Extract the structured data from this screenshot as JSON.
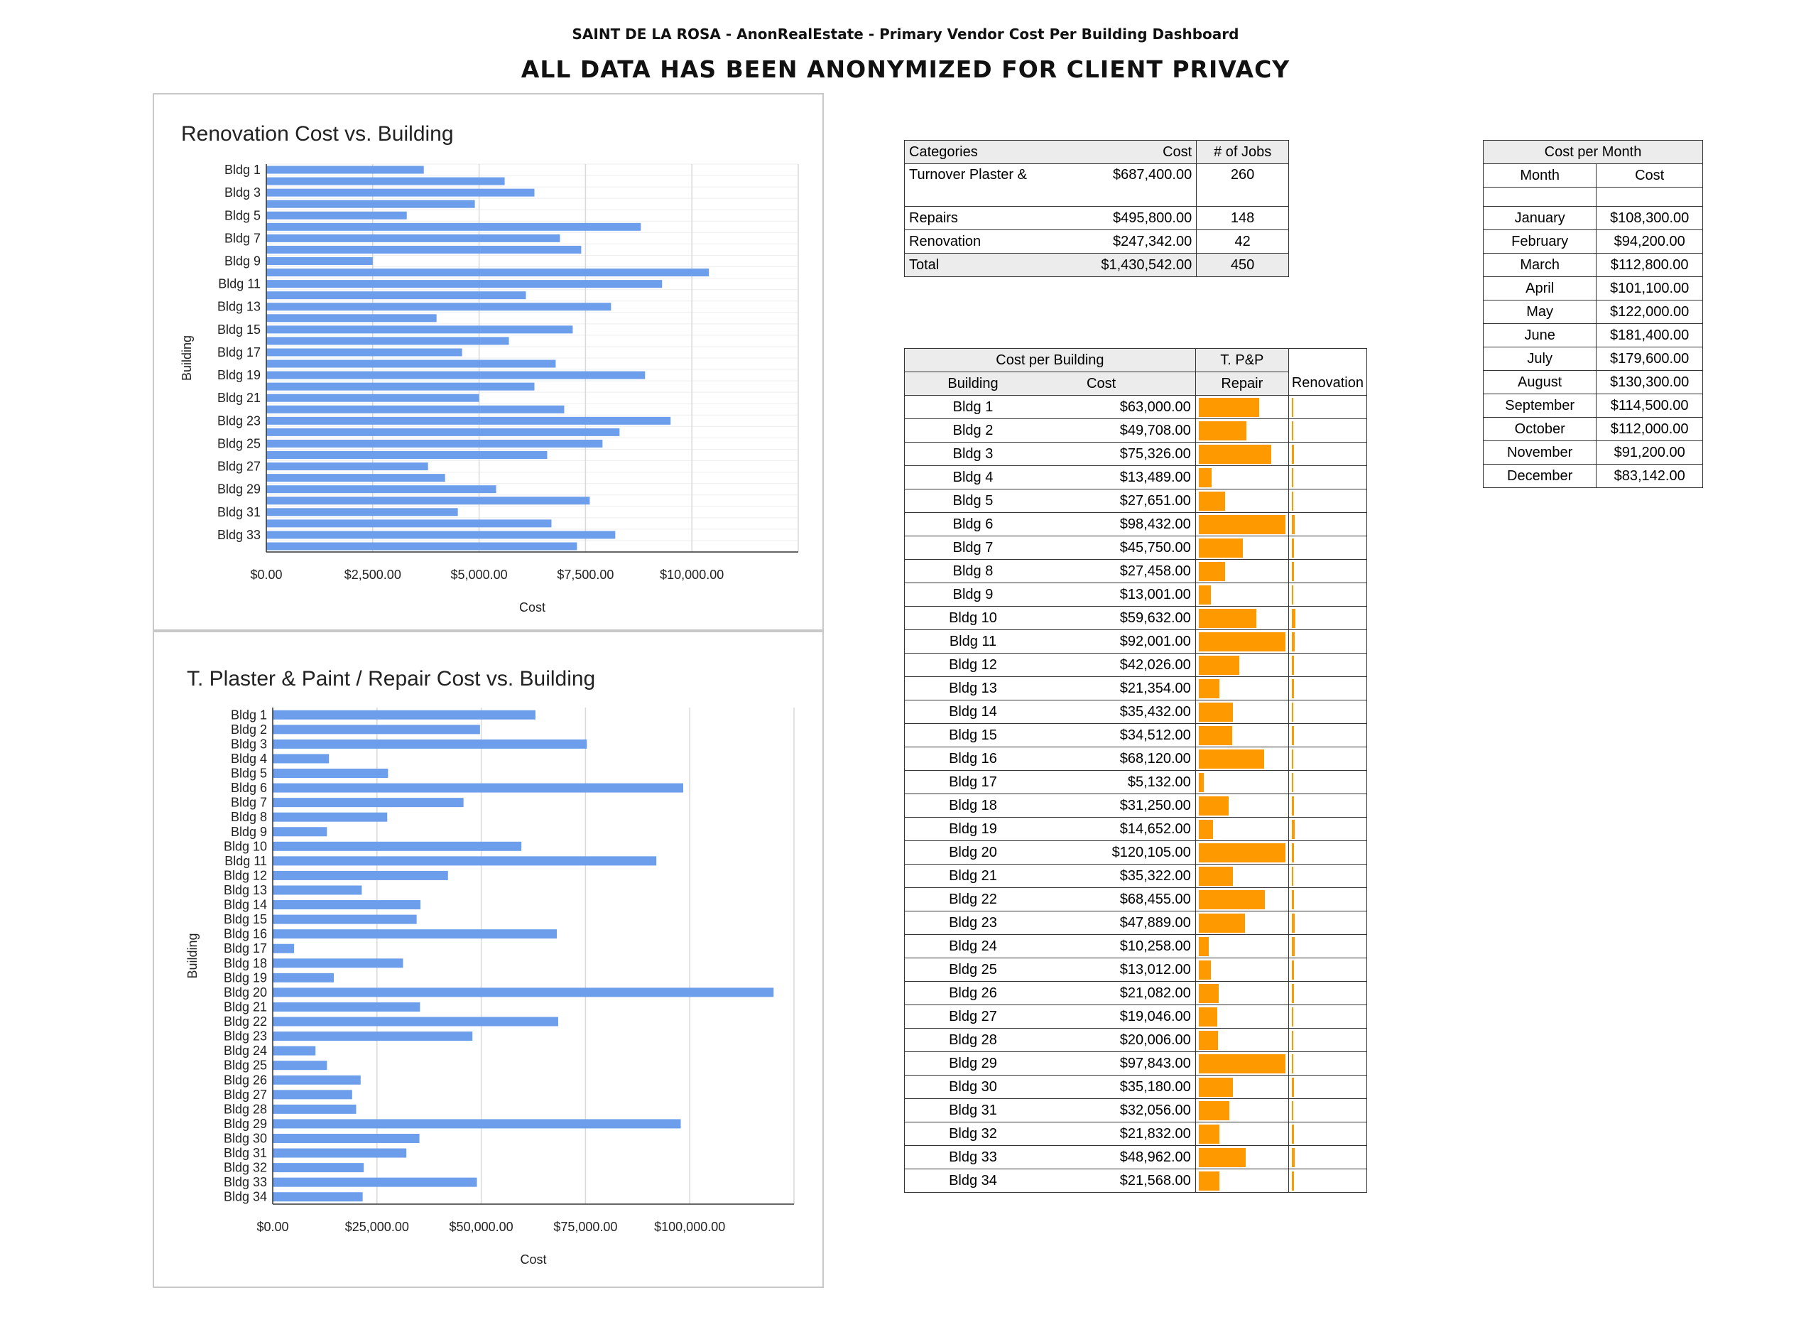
{
  "header": {
    "title": "SAINT DE LA ROSA - AnonRealEstate - Primary Vendor Cost Per Building Dashboard",
    "subtitle": "ALL DATA HAS BEEN ANONYMIZED FOR CLIENT PRIVACY"
  },
  "chart_data": [
    {
      "type": "bar",
      "orientation": "horizontal",
      "title": "Renovation Cost vs. Building",
      "xlabel": "Cost",
      "ylabel": "Building",
      "categories": [
        "Bldg 1",
        "Bldg 2",
        "Bldg 3",
        "Bldg 4",
        "Bldg 5",
        "Bldg 6",
        "Bldg 7",
        "Bldg 8",
        "Bldg 9",
        "Bldg 10",
        "Bldg 11",
        "Bldg 12",
        "Bldg 13",
        "Bldg 14",
        "Bldg 15",
        "Bldg 16",
        "Bldg 17",
        "Bldg 18",
        "Bldg 19",
        "Bldg 20",
        "Bldg 21",
        "Bldg 22",
        "Bldg 23",
        "Bldg 24",
        "Bldg 25",
        "Bldg 26",
        "Bldg 27",
        "Bldg 28",
        "Bldg 29",
        "Bldg 30",
        "Bldg 31",
        "Bldg 32",
        "Bldg 33",
        "Bldg 34"
      ],
      "tick_labels_y": [
        "Bldg 1",
        "Bldg 3",
        "Bldg 5",
        "Bldg 7",
        "Bldg 9",
        "Bldg 11",
        "Bldg 13",
        "Bldg 15",
        "Bldg 17",
        "Bldg 19",
        "Bldg 21",
        "Bldg 23",
        "Bldg 25",
        "Bldg 27",
        "Bldg 29",
        "Bldg 31",
        "Bldg 33"
      ],
      "values": [
        3700,
        5600,
        6300,
        4900,
        3300,
        8800,
        6900,
        7400,
        2500,
        10400,
        9300,
        6100,
        8100,
        4000,
        7200,
        5700,
        4600,
        6800,
        8900,
        6300,
        5000,
        7000,
        9500,
        8300,
        7900,
        6600,
        3800,
        4200,
        5400,
        7600,
        4500,
        6700,
        8200,
        7300
      ],
      "xlim": [
        0,
        12500
      ],
      "xticks": [
        0,
        2500,
        5000,
        7500,
        10000
      ],
      "xtick_labels": [
        "$0.00",
        "$2,500.00",
        "$5,000.00",
        "$7,500.00",
        "$10,000.00"
      ],
      "color": "#6d9eeb",
      "grid": true
    },
    {
      "type": "bar",
      "orientation": "horizontal",
      "title": "T. Plaster & Paint / Repair Cost vs. Building",
      "xlabel": "Cost",
      "ylabel": "Building",
      "categories": [
        "Bldg 1",
        "Bldg 2",
        "Bldg 3",
        "Bldg 4",
        "Bldg 5",
        "Bldg 6",
        "Bldg 7",
        "Bldg 8",
        "Bldg 9",
        "Bldg 10",
        "Bldg 11",
        "Bldg 12",
        "Bldg 13",
        "Bldg 14",
        "Bldg 15",
        "Bldg 16",
        "Bldg 17",
        "Bldg 18",
        "Bldg 19",
        "Bldg 20",
        "Bldg 21",
        "Bldg 22",
        "Bldg 23",
        "Bldg 24",
        "Bldg 25",
        "Bldg 26",
        "Bldg 27",
        "Bldg 28",
        "Bldg 29",
        "Bldg 30",
        "Bldg 31",
        "Bldg 32",
        "Bldg 33",
        "Bldg 34"
      ],
      "values": [
        63000,
        49708,
        75326,
        13489,
        27651,
        98432,
        45750,
        27458,
        13001,
        59632,
        92001,
        42026,
        21354,
        35432,
        34512,
        68120,
        5132,
        31250,
        14652,
        120105,
        35322,
        68455,
        47889,
        10258,
        13012,
        21082,
        19046,
        20006,
        97843,
        35180,
        32056,
        21832,
        48962,
        21568
      ],
      "xlim": [
        0,
        125000
      ],
      "xticks": [
        0,
        25000,
        50000,
        75000,
        100000
      ],
      "xtick_labels": [
        "$0.00",
        "$25,000.00",
        "$50,000.00",
        "$75,000.00",
        "$100,000.00"
      ],
      "color": "#6d9eeb",
      "grid": true
    }
  ],
  "categories_table": {
    "headers": [
      "Categories",
      "Cost",
      "# of Jobs"
    ],
    "rows": [
      {
        "name": "Turnover Plaster & Paint",
        "cost": "$687,400.00",
        "jobs": "260"
      },
      {
        "name": "Repairs",
        "cost": "$495,800.00",
        "jobs": "148"
      },
      {
        "name": "Renovation",
        "cost": "$247,342.00",
        "jobs": "42"
      },
      {
        "name": "Total",
        "cost": "$1,430,542.00",
        "jobs": "450"
      }
    ]
  },
  "month_table": {
    "title": "Cost per Month",
    "headers": [
      "Month",
      "Cost"
    ],
    "rows": [
      [
        "January",
        "$108,300.00"
      ],
      [
        "February",
        "$94,200.00"
      ],
      [
        "March",
        "$112,800.00"
      ],
      [
        "April",
        "$101,100.00"
      ],
      [
        "May",
        "$122,000.00"
      ],
      [
        "June",
        "$181,400.00"
      ],
      [
        "July",
        "$179,600.00"
      ],
      [
        "August",
        "$130,300.00"
      ],
      [
        "September",
        "$114,500.00"
      ],
      [
        "October",
        "$112,000.00"
      ],
      [
        "November",
        "$91,200.00"
      ],
      [
        "December",
        "$83,142.00"
      ]
    ]
  },
  "building_table": {
    "group_title": "Cost per Building",
    "group_tpp": "T. P&P",
    "headers": [
      "Building",
      "Cost",
      "Repair",
      "Renovation"
    ],
    "bar_max": 90000,
    "bar_color": "#ff9900",
    "rows": [
      [
        "Bldg 1",
        "$63,000.00"
      ],
      [
        "Bldg 2",
        "$49,708.00"
      ],
      [
        "Bldg 3",
        "$75,326.00"
      ],
      [
        "Bldg 4",
        "$13,489.00"
      ],
      [
        "Bldg 5",
        "$27,651.00"
      ],
      [
        "Bldg 6",
        "$98,432.00"
      ],
      [
        "Bldg 7",
        "$45,750.00"
      ],
      [
        "Bldg 8",
        "$27,458.00"
      ],
      [
        "Bldg 9",
        "$13,001.00"
      ],
      [
        "Bldg 10",
        "$59,632.00"
      ],
      [
        "Bldg 11",
        "$92,001.00"
      ],
      [
        "Bldg 12",
        "$42,026.00"
      ],
      [
        "Bldg 13",
        "$21,354.00"
      ],
      [
        "Bldg 14",
        "$35,432.00"
      ],
      [
        "Bldg 15",
        "$34,512.00"
      ],
      [
        "Bldg 16",
        "$68,120.00"
      ],
      [
        "Bldg 17",
        "$5,132.00"
      ],
      [
        "Bldg 18",
        "$31,250.00"
      ],
      [
        "Bldg 19",
        "$14,652.00"
      ],
      [
        "Bldg 20",
        "$120,105.00"
      ],
      [
        "Bldg 21",
        "$35,322.00"
      ],
      [
        "Bldg 22",
        "$68,455.00"
      ],
      [
        "Bldg 23",
        "$47,889.00"
      ],
      [
        "Bldg 24",
        "$10,258.00"
      ],
      [
        "Bldg 25",
        "$13,012.00"
      ],
      [
        "Bldg 26",
        "$21,082.00"
      ],
      [
        "Bldg 27",
        "$19,046.00"
      ],
      [
        "Bldg 28",
        "$20,006.00"
      ],
      [
        "Bldg 29",
        "$97,843.00"
      ],
      [
        "Bldg 30",
        "$35,180.00"
      ],
      [
        "Bldg 31",
        "$32,056.00"
      ],
      [
        "Bldg 32",
        "$21,832.00"
      ],
      [
        "Bldg 33",
        "$48,962.00"
      ],
      [
        "Bldg 34",
        "$21,568.00"
      ]
    ]
  }
}
